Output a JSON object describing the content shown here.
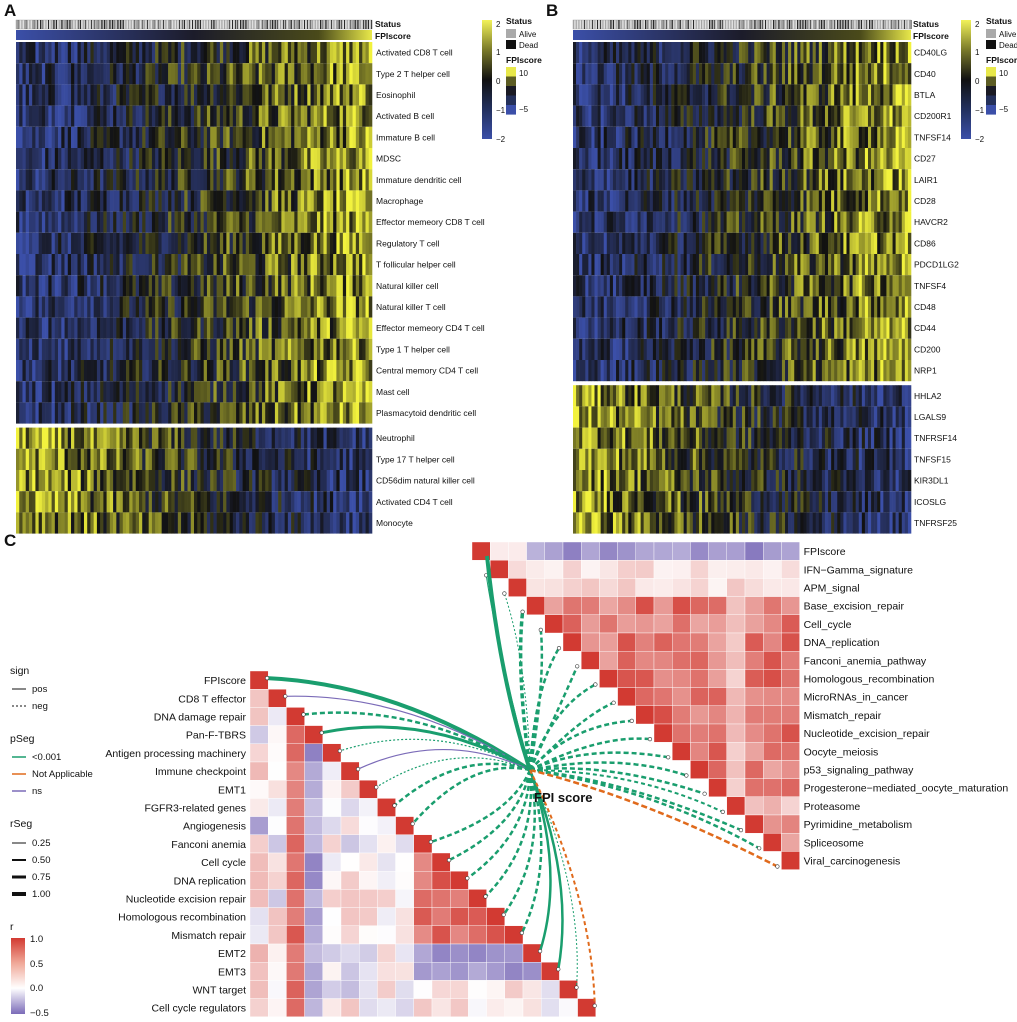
{
  "panelA": {
    "letter": "A",
    "status_label": "Status",
    "fpiscore_label": "FPIscore",
    "rows_top": [
      "Activated CD8 T cell",
      "Type 2 T helper cell",
      "Eosinophil",
      "Activated B cell",
      "Immature  B cell",
      "MDSC",
      "Immature dendritic cell",
      "Macrophage",
      "Effector memeory CD8 T cell",
      "Regulatory T cell",
      "T follicular helper cell",
      "Natural killer cell",
      "Natural killer T cell",
      "Effector memeory CD4 T cell",
      "Type 1 T helper cell",
      "Central memory CD4 T cell",
      "Mast cell",
      "Plasmacytoid dendritic cell"
    ],
    "rows_bottom": [
      "Neutrophil",
      "Type 17 T helper cell",
      "CD56dim natural killer cell",
      "Activated CD4 T cell",
      "Monocyte"
    ]
  },
  "panelB": {
    "letter": "B",
    "status_label": "Status",
    "fpiscore_label": "FPIscore",
    "rows_top": [
      "CD40LG",
      "CD40",
      "BTLA",
      "CD200R1",
      "TNFSF14",
      "CD27",
      "LAIR1",
      "CD28",
      "HAVCR2",
      "CD86",
      "PDCD1LG2",
      "TNFSF4",
      "CD48",
      "CD44",
      "CD200",
      "NRP1"
    ],
    "rows_bottom": [
      "HHLA2",
      "LGALS9",
      "TNFRSF14",
      "TNFSF15",
      "KIR3DL1",
      "ICOSLG",
      "TNFRSF25"
    ]
  },
  "heat_legend": {
    "ticks": [
      "2",
      "1",
      "0",
      "−1",
      "−2"
    ],
    "status_title": "Status",
    "alive": "Alive",
    "dead": "Dead",
    "fpi_title": "FPIscore",
    "fpi_hi": "10",
    "fpi_lo": "−5",
    "colors": {
      "high": "#f2f25a",
      "mid": "#111111",
      "low": "#3b4fa8"
    }
  },
  "panelC": {
    "letter": "C",
    "center_label": "FPI score",
    "left_vars": [
      "FPIscore",
      "CD8 T effector",
      "DNA damage repair",
      "Pan-F-TBRS",
      "Antigen processing machinery",
      "Immune checkpoint",
      "EMT1",
      "FGFR3-related genes",
      "Angiogenesis",
      "Fanconi anemia",
      "Cell cycle",
      "DNA replication",
      "Nucleotide excision repair",
      "Homologous recombination",
      "Mismatch repair",
      "EMT2",
      "EMT3",
      "WNT target",
      "Cell cycle regulators"
    ],
    "right_vars": [
      "FPIscore",
      "IFN−Gamma_signature",
      "APM_signal",
      "Base_excision_repair",
      "Cell_cycle",
      "DNA_replication",
      "Fanconi_anemia_pathway",
      "Homologous_recombination",
      "MicroRNAs_in_cancer",
      "Mismatch_repair",
      "Nucleotide_excision_repair",
      "Oocyte_meiosis",
      "p53_signaling_pathway",
      "Progesterone−mediated_oocyte_maturation",
      "Proteasome",
      "Pyrimidine_metabolism",
      "Spliceosome",
      "Viral_carcinogenesis"
    ]
  },
  "corr_legend": {
    "sign_title": "sign",
    "pos": "pos",
    "neg": "neg",
    "pseg_title": "pSeg",
    "p1": "<0.001",
    "p2": "Not Applicable",
    "p3": "ns",
    "rseg_title": "rSeg",
    "rseg": [
      "0.25",
      "0.50",
      "0.75",
      "1.00"
    ],
    "r_title": "r",
    "r_ticks": [
      "1.0",
      "0.5",
      "0.0",
      "−0.5"
    ],
    "colors": {
      "green": "#1a9e6e",
      "orange": "#e06a1c",
      "purple": "#7b6bb8",
      "red": "#d23a32",
      "blue": "#7b6bb8"
    }
  }
}
